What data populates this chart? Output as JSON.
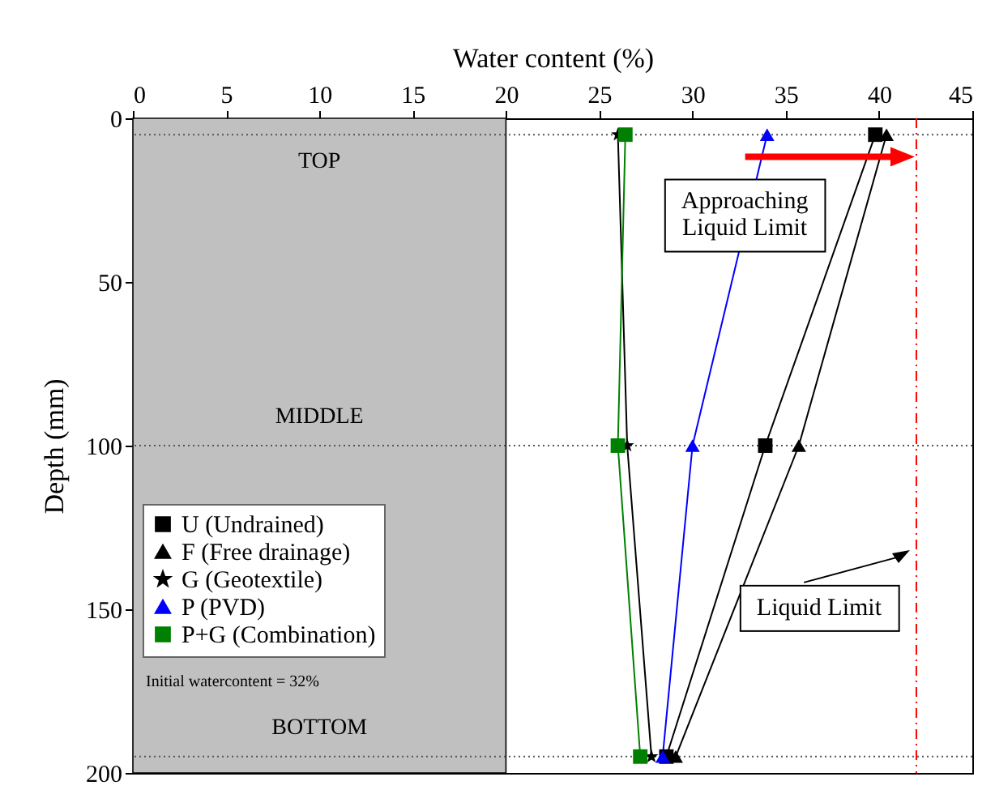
{
  "chart_data": {
    "type": "line",
    "xlabel": "Water content (%)",
    "ylabel": "Depth (mm)",
    "xlim": [
      0,
      45
    ],
    "xticks": [
      0,
      5,
      10,
      15,
      20,
      25,
      30,
      35,
      40,
      45
    ],
    "ylim": [
      200,
      0
    ],
    "yticks": [
      0,
      50,
      100,
      150,
      200
    ],
    "grid": false,
    "legend": "bottom left",
    "series": [
      {
        "name": "U (Undrained)",
        "color": "#000000",
        "marker": "square",
        "x": [
          39.8,
          33.9,
          28.6
        ],
        "values": [
          5,
          100,
          195
        ]
      },
      {
        "name": "F (Free drainage)",
        "color": "#000000",
        "marker": "triangle",
        "x": [
          40.4,
          35.7,
          29.1
        ],
        "values": [
          5,
          100,
          195
        ]
      },
      {
        "name": "G (Geotextile)",
        "color": "#000000",
        "marker": "star",
        "x": [
          26.0,
          26.5,
          27.8
        ],
        "values": [
          5,
          100,
          195
        ]
      },
      {
        "name": "P (PVD)",
        "color": "#0000ff",
        "marker": "triangle",
        "x": [
          34.0,
          30.0,
          28.4
        ],
        "values": [
          5,
          100,
          195
        ]
      },
      {
        "name": "P+G (Combination)",
        "color": "#008000",
        "marker": "square",
        "x": [
          26.4,
          26.0,
          27.2
        ],
        "values": [
          5,
          100,
          195
        ]
      }
    ],
    "bands": [
      {
        "axis": "x",
        "from": 0,
        "to": 20,
        "color": "#c0c0c0"
      }
    ],
    "ref_lines": [
      {
        "axis": "x",
        "value": 42,
        "label": "Liquid Limit",
        "color": "#ff0000",
        "line_style": "dashed"
      },
      {
        "axis": "y",
        "value": 5,
        "color": "#555555",
        "line_style": "dotted"
      },
      {
        "axis": "y",
        "value": 100,
        "color": "#555555",
        "line_style": "dotted"
      },
      {
        "axis": "y",
        "value": 195,
        "color": "#555555",
        "line_style": "dotted"
      }
    ],
    "annotations": [
      "TOP",
      "MIDDLE",
      "BOTTOM",
      {
        "text": "Approaching Liquid Limit",
        "x": 32.8,
        "y": 30
      },
      "Initial watercontent = 32%"
    ]
  }
}
